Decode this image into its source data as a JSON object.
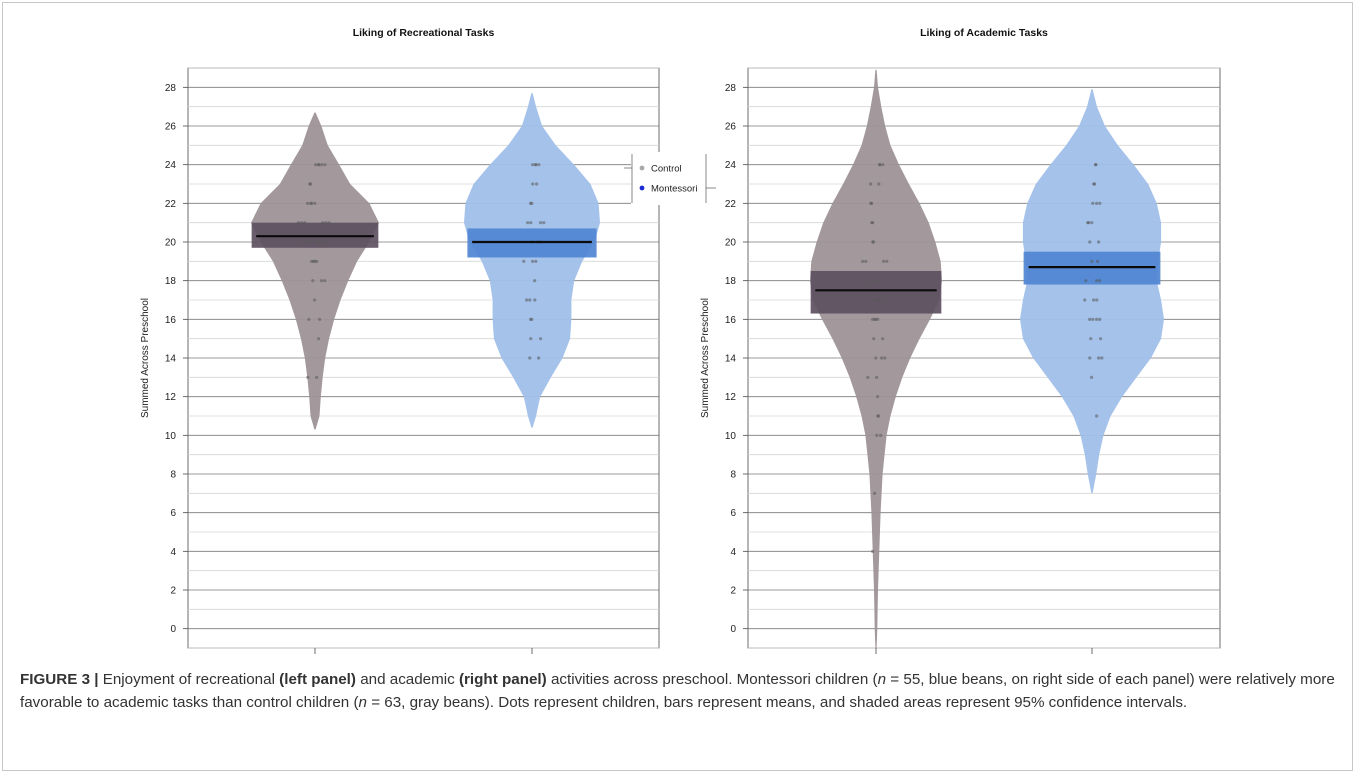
{
  "chart_data": [
    {
      "type": "violin",
      "title": "Liking of Recreational Tasks",
      "ylabel": "Summed Across Preschool",
      "ylim": [
        -1,
        29
      ],
      "yticks": [
        0,
        2,
        4,
        6,
        8,
        10,
        12,
        14,
        16,
        18,
        20,
        22,
        24,
        26,
        28
      ],
      "groups": [
        {
          "name": "Control",
          "mean": 20.3,
          "ci": [
            19.7,
            21.0
          ],
          "range": [
            10.3,
            26.7
          ],
          "points": [
            24,
            24,
            24,
            24,
            24,
            23,
            23,
            22,
            22,
            22,
            22,
            21,
            21,
            21,
            21,
            21,
            21,
            20,
            20,
            20,
            20,
            20,
            19,
            19,
            19,
            19,
            18,
            18,
            18,
            17,
            16,
            16,
            15,
            13,
            13
          ]
        },
        {
          "name": "Montessori",
          "mean": 20.0,
          "ci": [
            19.2,
            20.7
          ],
          "range": [
            10.4,
            27.7
          ],
          "points": [
            24,
            24,
            24,
            24,
            23,
            23,
            22,
            22,
            21,
            21,
            21,
            21,
            20,
            20,
            20,
            19,
            19,
            19,
            18,
            17,
            17,
            17,
            16,
            16,
            15,
            15,
            14,
            14
          ]
        }
      ]
    },
    {
      "type": "violin",
      "title": "Liking of Academic Tasks",
      "ylabel": "Summed Across Preschool",
      "ylim": [
        -1,
        29
      ],
      "yticks": [
        0,
        2,
        4,
        6,
        8,
        10,
        12,
        14,
        16,
        18,
        20,
        22,
        24,
        26,
        28
      ],
      "groups": [
        {
          "name": "Control",
          "mean": 17.5,
          "ci": [
            16.3,
            18.5
          ],
          "range": [
            -1.0,
            28.9
          ],
          "points": [
            24,
            24,
            24,
            23,
            23,
            22,
            22,
            21,
            21,
            20,
            20,
            19,
            19,
            19,
            19,
            18,
            18,
            18,
            17,
            17,
            17,
            17,
            16,
            16,
            16,
            16,
            15,
            15,
            14,
            14,
            14,
            13,
            13,
            12,
            11,
            11,
            10,
            10,
            7,
            4
          ]
        },
        {
          "name": "Montessori",
          "mean": 18.7,
          "ci": [
            17.8,
            19.5
          ],
          "range": [
            7.0,
            27.9
          ],
          "points": [
            24,
            24,
            23,
            23,
            22,
            22,
            22,
            21,
            21,
            21,
            20,
            20,
            19,
            19,
            18,
            18,
            18,
            17,
            17,
            17,
            16,
            16,
            16,
            16,
            15,
            15,
            14,
            14,
            14,
            13,
            11
          ]
        }
      ]
    }
  ],
  "legend": {
    "items": [
      {
        "label": "Control",
        "color": "#a8a8a8"
      },
      {
        "label": "Montessori",
        "color": "#1a2bd4"
      }
    ]
  },
  "colors": {
    "control_fill": "#9e9398",
    "control_ci": "#5d5060",
    "montessori_fill": "#9fbfe9",
    "montessori_ci": "#4f86d3",
    "mean_line": "#0b0b0b",
    "grid": "#7a7a7a"
  },
  "caption": {
    "label": "FIGURE 3 |",
    "t1": " Enjoyment of recreational ",
    "b1": "(left panel)",
    "t2": " and academic ",
    "b2": "(right panel)",
    "t3": " activities across preschool. Montessori children (",
    "n1": "n",
    "t4": " = 55, blue beans, on right side of each panel) were relatively more favorable to academic tasks than control children (",
    "n2": "n",
    "t5": " = 63, gray beans). Dots represent children, bars represent means, and shaded areas represent 95% confidence intervals."
  }
}
